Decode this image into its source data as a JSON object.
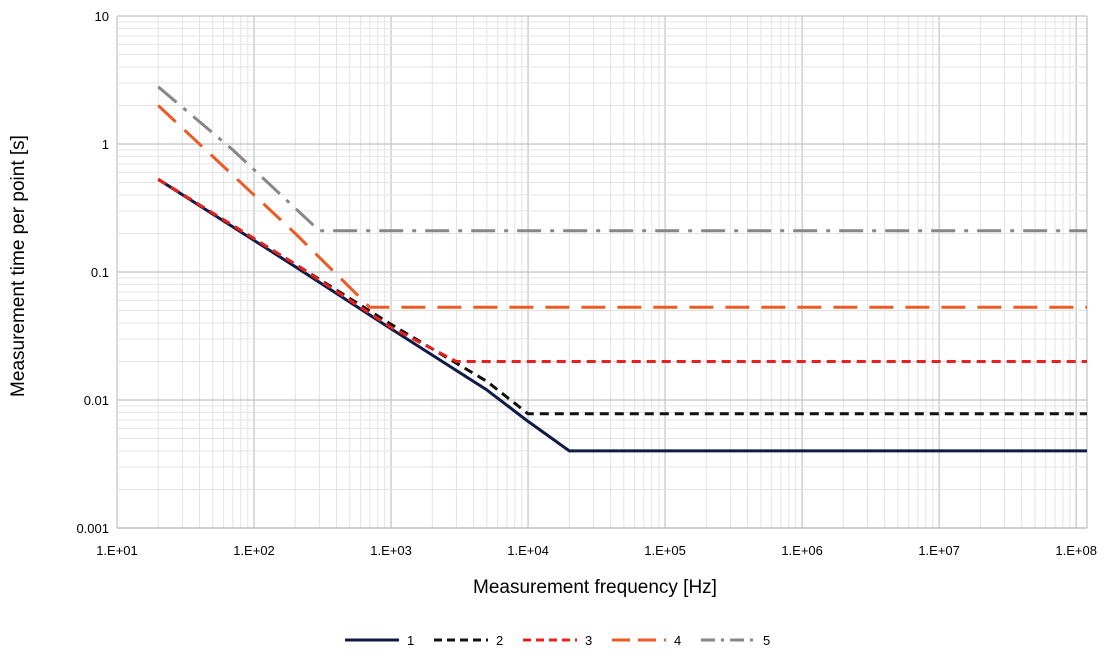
{
  "chart_data": {
    "type": "line",
    "title": "",
    "xlabel": "Measurement frequency [Hz]",
    "ylabel": "Measurement time per point [s]",
    "x_scale": "log",
    "y_scale": "log",
    "xlim": [
      10,
      120000000
    ],
    "ylim": [
      0.001,
      10
    ],
    "x_tick_values": [
      10,
      100,
      1000,
      10000,
      100000,
      1000000,
      10000000,
      100000000
    ],
    "x_tick_labels": [
      "1.E+01",
      "1.E+02",
      "1.E+03",
      "1.E+04",
      "1.E+05",
      "1.E+06",
      "1.E+07",
      "1.E+08"
    ],
    "y_tick_values": [
      0.001,
      0.01,
      0.1,
      1,
      10
    ],
    "y_tick_labels": [
      "0.001",
      "0.01",
      "0.1",
      "1",
      "10"
    ],
    "grid": true,
    "legend_position": "bottom-center",
    "series": [
      {
        "name": "1",
        "color": "#0f1b47",
        "dash": "solid",
        "x": [
          20,
          200,
          1000,
          5000,
          10000,
          20000,
          120000000
        ],
        "y": [
          0.53,
          0.11,
          0.036,
          0.012,
          0.0068,
          0.004,
          0.004
        ]
      },
      {
        "name": "2",
        "color": "#111111",
        "dash": "dashed",
        "x": [
          20,
          200,
          1000,
          5000,
          10000,
          120000000
        ],
        "y": [
          0.53,
          0.115,
          0.039,
          0.014,
          0.0078,
          0.0078
        ]
      },
      {
        "name": "3",
        "color": "#e8201f",
        "dash": "dashed",
        "x": [
          20,
          200,
          1000,
          3000,
          120000000
        ],
        "y": [
          0.53,
          0.115,
          0.037,
          0.02,
          0.02
        ]
      },
      {
        "name": "4",
        "color": "#ec5b24",
        "dash": "long-dash",
        "x": [
          20,
          200,
          700,
          120000000
        ],
        "y": [
          2.0,
          0.2,
          0.053,
          0.053
        ]
      },
      {
        "name": "5",
        "color": "#8c8486",
        "dash": "dash-dot",
        "x": [
          20,
          70,
          300,
          120000000
        ],
        "y": [
          2.8,
          0.9,
          0.21,
          0.21
        ]
      }
    ]
  }
}
